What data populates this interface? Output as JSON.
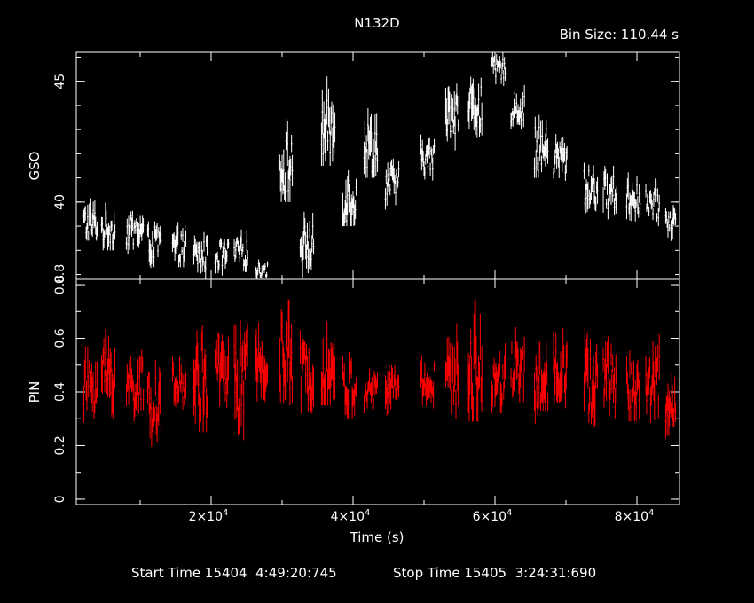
{
  "chart_data": {
    "type": "line",
    "title": "N132D",
    "bin_size_label": "Bin Size: 110.44 s",
    "xlabel": "Time (s)",
    "x_ticks": [
      20000,
      40000,
      60000,
      80000
    ],
    "x_tick_labels": [
      "2×10",
      "4×10",
      "6×10",
      "8×10"
    ],
    "x_tick_exponent": "4",
    "xlim": [
      1000,
      86000
    ],
    "footer": {
      "start_label": "Start Time 15404  4:49:20:745",
      "stop_label": "Stop Time 15405  3:24:31:690"
    },
    "panels": [
      {
        "name": "gso",
        "ylabel": "GSO",
        "ylim": [
          36.8,
          46.2
        ],
        "y_ticks": [
          40,
          45
        ],
        "y_tick_labels": [
          "40",
          "45"
        ],
        "bottom_edge_label": "0.8",
        "color": "#ffffff",
        "series": [
          {
            "orbits": [
              [
                2000,
                4000,
                38.4,
                40.8,
                39.1
              ],
              [
                4500,
                6500,
                38.0,
                40.0,
                38.9
              ],
              [
                8000,
                10500,
                37.8,
                39.9,
                38.8
              ],
              [
                11000,
                13000,
                37.0,
                39.2,
                38.3
              ],
              [
                14500,
                16500,
                37.3,
                39.3,
                38.1
              ],
              [
                17500,
                19500,
                36.8,
                38.9,
                37.8
              ],
              [
                20500,
                22500,
                36.9,
                38.7,
                37.8
              ],
              [
                23200,
                25200,
                37.1,
                38.9,
                37.9
              ],
              [
                26200,
                28000,
                36.8,
                37.7,
                37.2
              ],
              [
                29500,
                31500,
                40.0,
                44.0,
                41.5
              ],
              [
                32500,
                34500,
                36.8,
                39.6,
                38.2
              ],
              [
                35500,
                37500,
                41.5,
                45.5,
                43.0
              ],
              [
                38500,
                40500,
                39.0,
                42.5,
                40.2
              ],
              [
                41500,
                43500,
                41.0,
                44.5,
                42.3
              ],
              [
                44500,
                46500,
                39.5,
                41.8,
                40.8
              ],
              [
                49500,
                51500,
                40.8,
                42.8,
                41.8
              ],
              [
                53000,
                55000,
                42.0,
                45.2,
                43.8
              ],
              [
                56200,
                58200,
                42.5,
                45.8,
                44.0
              ],
              [
                59500,
                61500,
                44.8,
                46.2,
                45.5
              ],
              [
                62200,
                64200,
                43.0,
                45.0,
                43.9
              ],
              [
                65500,
                67500,
                41.0,
                44.0,
                42.2
              ],
              [
                68200,
                70200,
                40.8,
                43.2,
                41.8
              ],
              [
                72500,
                74500,
                39.5,
                42.0,
                40.6
              ],
              [
                75200,
                77200,
                39.2,
                41.5,
                40.4
              ],
              [
                78500,
                80500,
                39.2,
                41.5,
                40.2
              ],
              [
                81200,
                83200,
                39.0,
                41.0,
                39.9
              ],
              [
                84000,
                85500,
                38.3,
                40.2,
                39.2
              ]
            ]
          }
        ]
      },
      {
        "name": "pin",
        "ylabel": "PIN",
        "ylim": [
          -0.02,
          0.82
        ],
        "y_ticks": [
          0,
          0.2,
          0.4,
          0.6,
          0.8
        ],
        "y_tick_labels": [
          "0",
          "0.2",
          "0.4",
          "0.6",
          "0.8"
        ],
        "color": "#ff0000",
        "series": [
          {
            "orbits": [
              [
                2000,
                4000,
                0.26,
                0.57,
                0.43
              ],
              [
                4500,
                6500,
                0.3,
                0.68,
                0.47
              ],
              [
                8000,
                10500,
                0.27,
                0.58,
                0.42
              ],
              [
                11000,
                13000,
                0.19,
                0.52,
                0.36
              ],
              [
                14500,
                16500,
                0.31,
                0.53,
                0.42
              ],
              [
                17500,
                19500,
                0.25,
                0.73,
                0.45
              ],
              [
                20500,
                22500,
                0.28,
                0.62,
                0.48
              ],
              [
                23200,
                25200,
                0.22,
                0.72,
                0.44
              ],
              [
                26200,
                28000,
                0.3,
                0.7,
                0.5
              ],
              [
                29500,
                31500,
                0.35,
                0.8,
                0.52
              ],
              [
                32500,
                34500,
                0.32,
                0.65,
                0.47
              ],
              [
                35500,
                37500,
                0.35,
                0.72,
                0.5
              ],
              [
                38500,
                40500,
                0.28,
                0.55,
                0.42
              ],
              [
                41500,
                43500,
                0.32,
                0.5,
                0.4
              ],
              [
                44500,
                46500,
                0.24,
                0.5,
                0.42
              ],
              [
                49500,
                51500,
                0.32,
                0.54,
                0.44
              ],
              [
                53000,
                55000,
                0.3,
                0.7,
                0.45
              ],
              [
                56200,
                58200,
                0.29,
                0.82,
                0.48
              ],
              [
                59500,
                61500,
                0.32,
                0.6,
                0.45
              ],
              [
                62200,
                64200,
                0.35,
                0.65,
                0.5
              ],
              [
                65500,
                67500,
                0.28,
                0.6,
                0.43
              ],
              [
                68200,
                70200,
                0.3,
                0.68,
                0.5
              ],
              [
                72500,
                74500,
                0.26,
                0.67,
                0.43
              ],
              [
                75200,
                77200,
                0.3,
                0.62,
                0.45
              ],
              [
                78500,
                80500,
                0.29,
                0.6,
                0.42
              ],
              [
                81200,
                83200,
                0.26,
                0.62,
                0.44
              ],
              [
                84000,
                85500,
                0.22,
                0.52,
                0.36
              ]
            ]
          }
        ]
      }
    ]
  }
}
